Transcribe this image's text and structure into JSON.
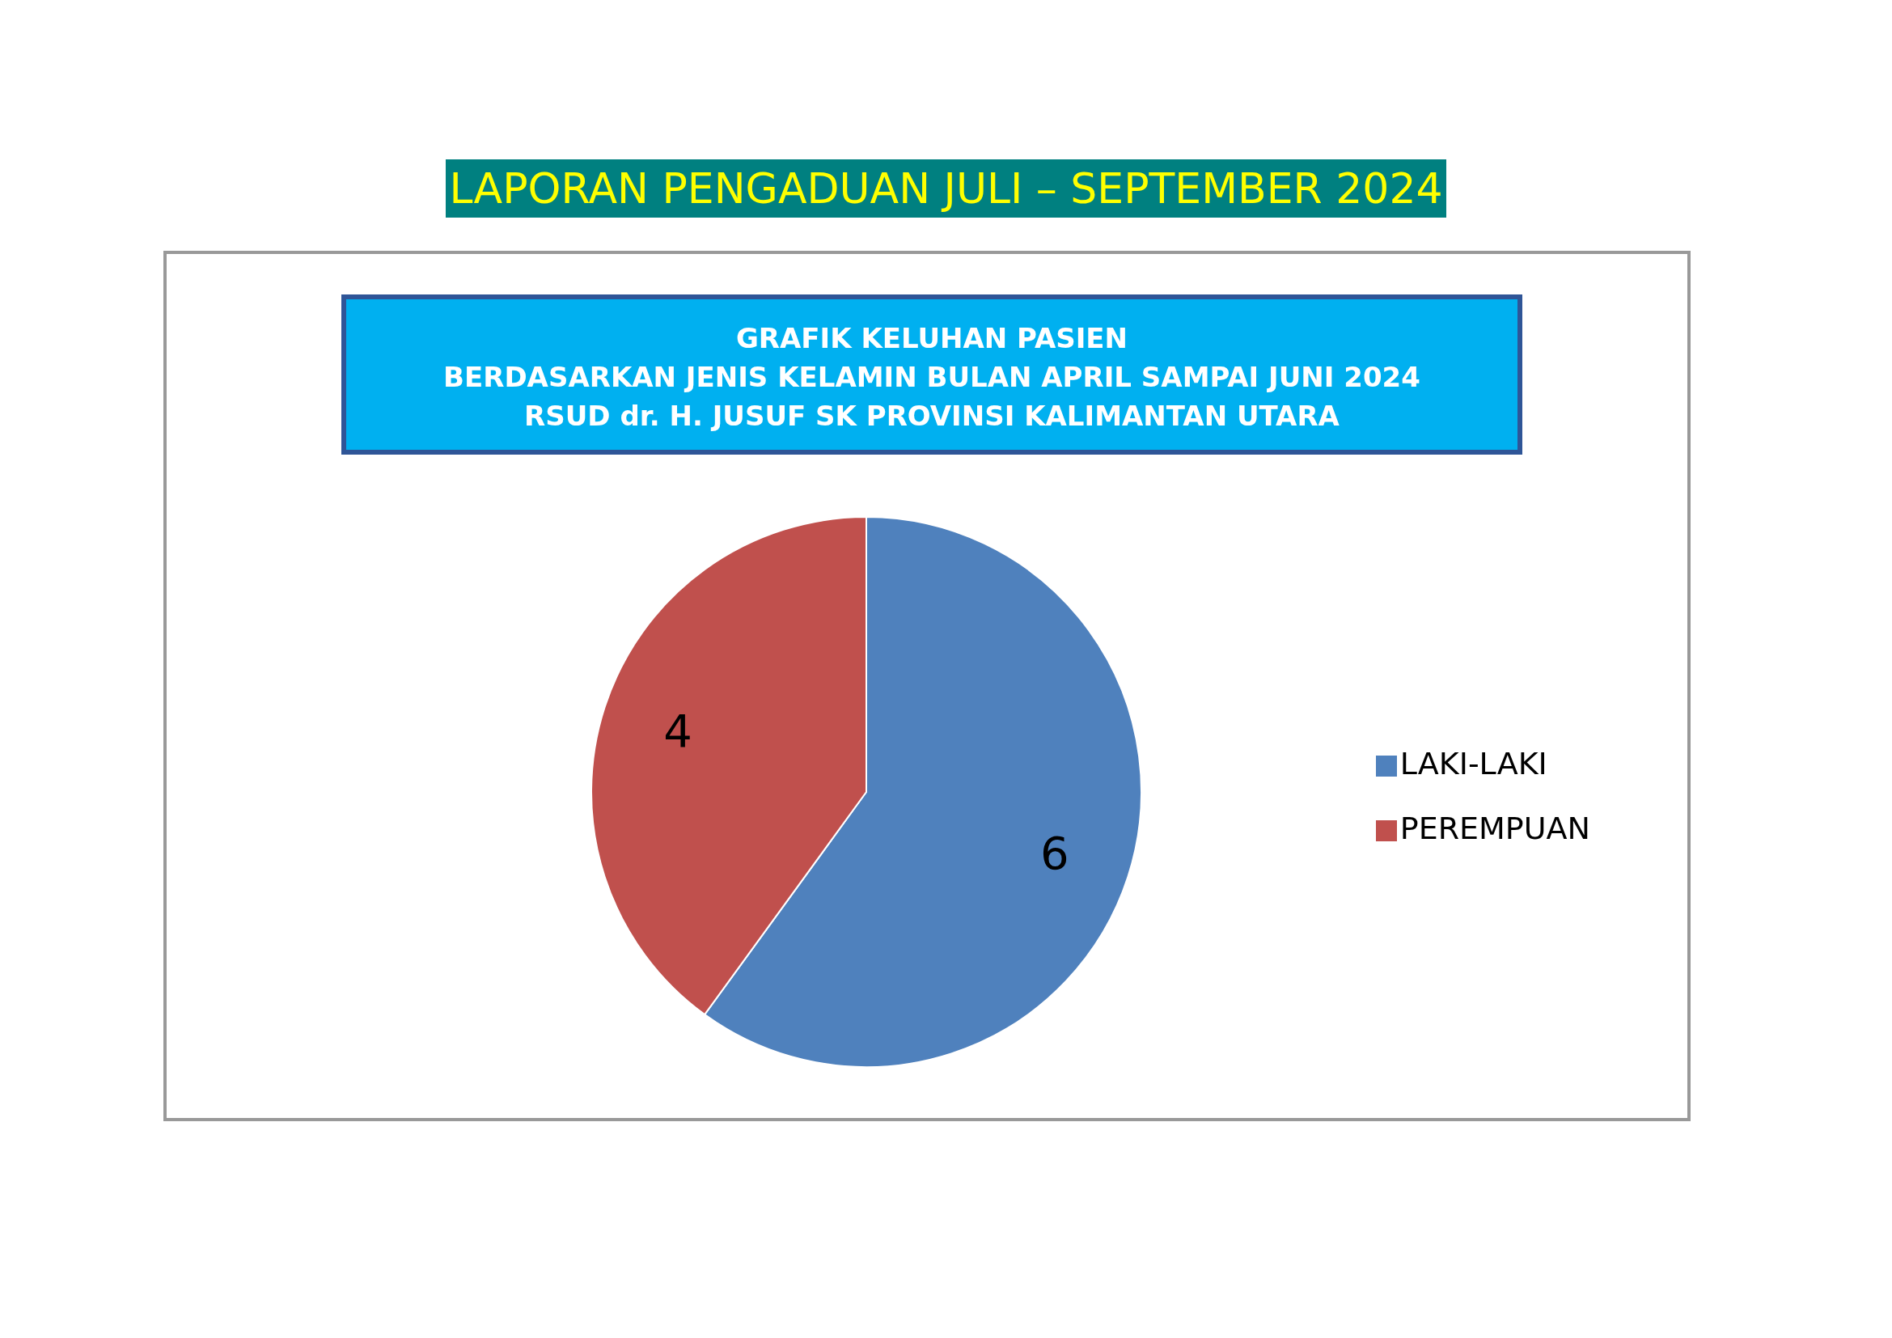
{
  "chart_data": {
    "type": "pie",
    "title": "LAPORAN PENGADUAN JULI – SEPTEMBER 2024",
    "subtitle": "GRAFIK KELUHAN PASIEN\nBERDASARKAN JENIS KELAMIN BULAN APRIL SAMPAI JUNI 2024\nRSUD dr. H. JUSUF SK PROVINSI KALIMANTAN UTARA",
    "categories": [
      "LAKI-LAKI",
      "PEREMPUAN"
    ],
    "values": [
      6,
      4
    ],
    "colors": [
      "#4f81bd",
      "#c0504d"
    ],
    "data_labels": true,
    "legend": "right"
  }
}
